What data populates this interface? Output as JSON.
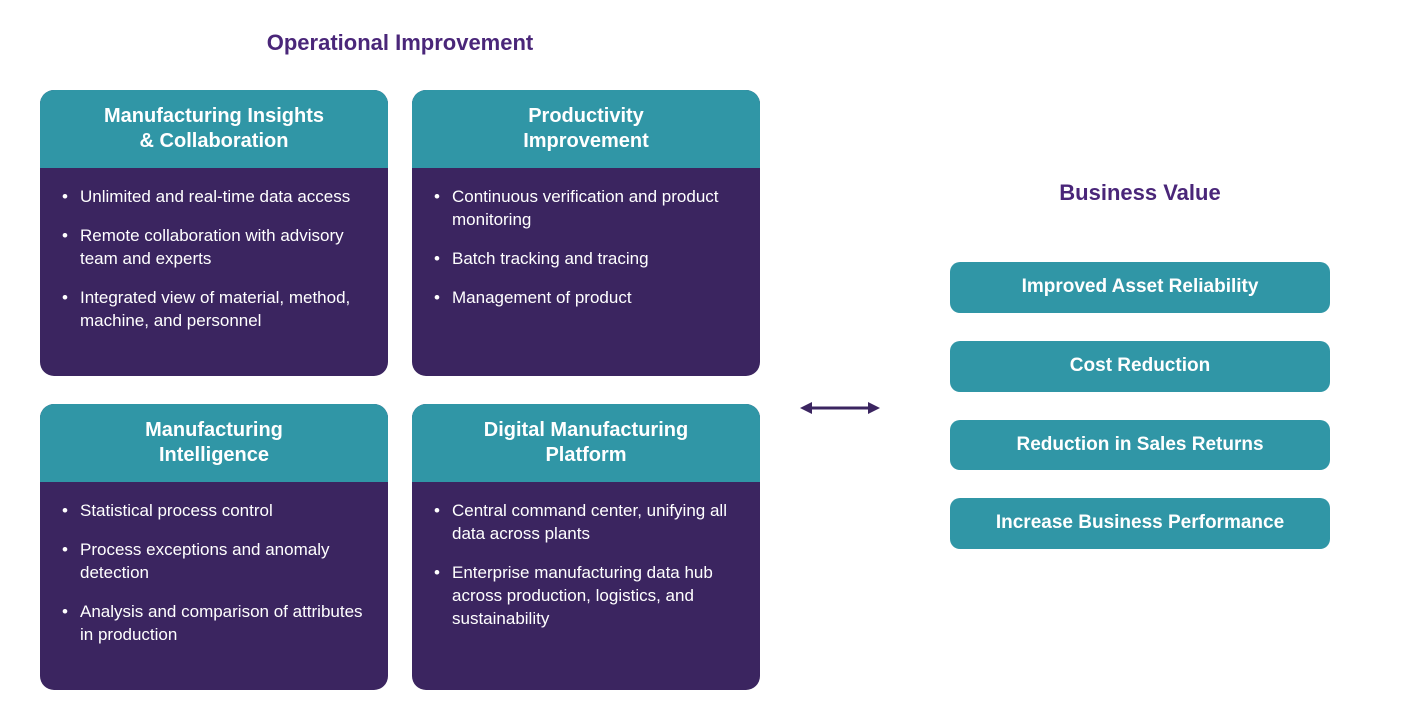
{
  "colors": {
    "purple": "#3b2560",
    "teal": "#3096a6",
    "titlePurple": "#4a2679",
    "arrow": "#3b2560",
    "white": "#ffffff"
  },
  "typography": {
    "titleFontSize": 22,
    "cardHeaderFontSize": 20,
    "bulletFontSize": 17,
    "pillFontSize": 19,
    "rightTitleFontSize": 22
  },
  "layout": {
    "leftTitleLeft": 40,
    "leftTitleTop": 30,
    "leftTitleWidth": 720,
    "rightTitleLeft": 950,
    "rightTitleTop": 180,
    "rightTitleWidth": 380,
    "cardRadius": 14,
    "pillRadius": 10,
    "cardRowHeights": [
      286,
      286
    ]
  },
  "leftTitle": "Operational Improvement",
  "rightTitle": "Business Value",
  "cards": [
    {
      "title": "Manufacturing Insights\n& Collaboration",
      "bullets": [
        "Unlimited and real-time data access",
        "Remote collaboration with advisory team and experts",
        "Integrated view of material, method, machine, and personnel"
      ]
    },
    {
      "title": "Productivity\nImprovement",
      "bullets": [
        "Continuous verification and product monitoring",
        "Batch tracking and tracing",
        "Management of product"
      ]
    },
    {
      "title": "Manufacturing\nIntelligence",
      "bullets": [
        "Statistical process control",
        "Process exceptions and anomaly detection",
        "Analysis and comparison of attributes in production"
      ]
    },
    {
      "title": "Digital Manufacturing\nPlatform",
      "bullets": [
        "Central command center, unifying all data across plants",
        "Enterprise manufacturing data hub across production, logistics, and sustainability"
      ]
    }
  ],
  "pills": [
    "Improved Asset Reliability",
    "Cost Reduction",
    "Reduction in Sales Returns",
    "Increase Business Performance"
  ],
  "arrow": {
    "strokeWidth": 3
  }
}
